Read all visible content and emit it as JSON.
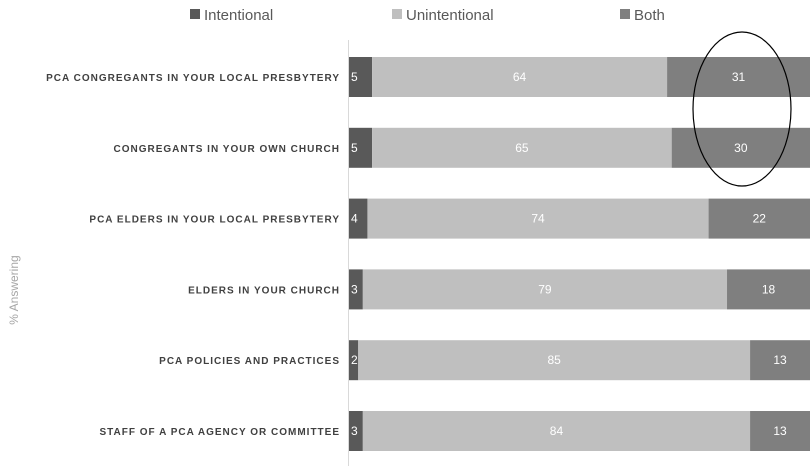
{
  "chart_data": {
    "type": "bar",
    "orientation": "horizontal",
    "stacked": true,
    "ylabel": "% Answering",
    "legend_position": "top",
    "categories": [
      "PCA CONGREGANTS IN YOUR LOCAL PRESBYTERY",
      "CONGREGANTS IN YOUR OWN CHURCH",
      "PCA ELDERS IN YOUR LOCAL PRESBYTERY",
      "ELDERS IN YOUR CHURCH",
      "PCA POLICIES AND PRACTICES",
      "STAFF OF A PCA AGENCY OR COMMITTEE"
    ],
    "series": [
      {
        "name": "Intentional",
        "color": "#595959",
        "values": [
          5,
          5,
          4,
          3,
          2,
          3
        ]
      },
      {
        "name": "Unintentional",
        "color": "#bfbfbf",
        "values": [
          64,
          65,
          74,
          79,
          85,
          84
        ]
      },
      {
        "name": "Both",
        "color": "#7f7f7f",
        "values": [
          31,
          30,
          22,
          18,
          13,
          13
        ]
      }
    ],
    "xlim": [
      0,
      100
    ],
    "grid": false,
    "annotation": "ellipse circling the Both values of the first two categories"
  }
}
